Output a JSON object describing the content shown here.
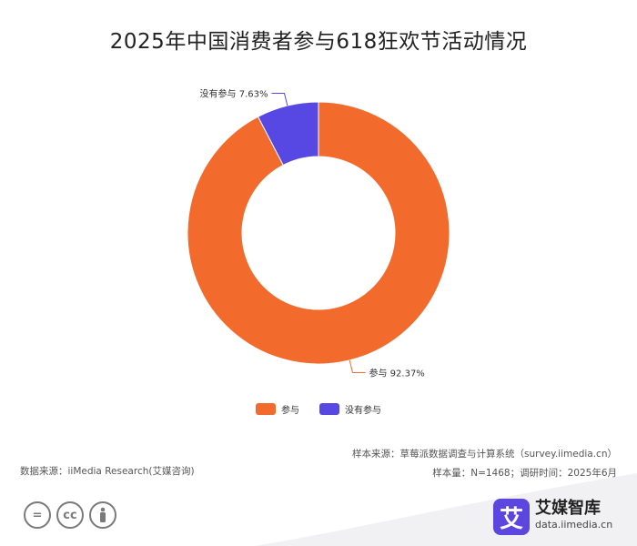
{
  "chart_data": {
    "type": "pie",
    "title": "2025年中国消费者参与618狂欢节活动情况",
    "donut": true,
    "slices": [
      {
        "name": "参与",
        "value": 92.37,
        "label": "参与 92.37%",
        "color": "#f26b2c"
      },
      {
        "name": "没有参与",
        "value": 7.63,
        "label": "没有参与 7.63%",
        "color": "#5748e3"
      }
    ],
    "legend": {
      "position": "bottom-center",
      "entries": [
        "参与",
        "没有参与"
      ]
    }
  },
  "footer": {
    "source_label": "数据来源：iiMedia Research(艾媒咨询)",
    "sample_source": "样本来源：草莓派数据调查与计算系统（survey.iimedia.cn）",
    "sample_info": "样本量：N=1468；调研时间：2025年6月"
  },
  "brand": {
    "logo_char": "艾",
    "name": "艾媒智库",
    "url": "data.iimedia.cn"
  },
  "license_icons": [
    "equal-icon",
    "cc-icon",
    "person-icon"
  ],
  "license_glyphs": {
    "equal": "=",
    "cc": "cc"
  }
}
